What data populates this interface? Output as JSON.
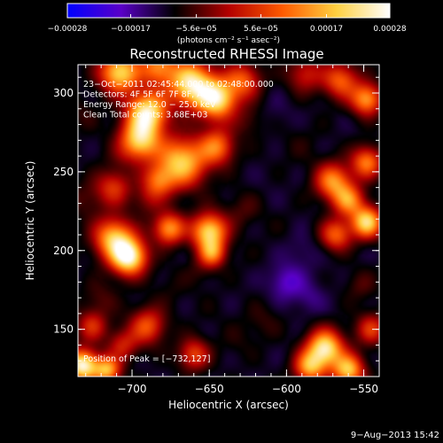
{
  "chart_data": {
    "type": "heatmap",
    "title": "Reconstructed RHESSI Image",
    "xlabel": "Heliocentric X (arcsec)",
    "ylabel": "Heliocentric Y (arcsec)",
    "xlim": [
      -735,
      -540
    ],
    "ylim": [
      120,
      318
    ],
    "x_ticks": [
      -700,
      -650,
      -600,
      -550
    ],
    "x_tick_labels": [
      "−700",
      "−650",
      "−600",
      "−550"
    ],
    "y_ticks": [
      150,
      200,
      250,
      300
    ],
    "y_tick_labels": [
      "150",
      "200",
      "250",
      "300"
    ],
    "colorbar": {
      "range": [
        -0.00028,
        0.00028
      ],
      "ticks": [
        -0.00028,
        -0.00017,
        -5.6e-05,
        5.6e-05,
        0.00017,
        0.00028
      ],
      "tick_labels": [
        "−0.00028",
        "−0.00017",
        "−5.6e−05",
        "5.6e−05",
        "0.00017",
        "0.00028"
      ],
      "units": "(photons cm⁻² s⁻¹ asec⁻²)",
      "colormap": [
        "#0000ff",
        "#5a00c8",
        "#000000",
        "#b30000",
        "#ff5a00",
        "#ffd040",
        "#ffffff"
      ]
    },
    "annotations": [
      "23−Oct−2011 02:45:44.000 to 02:48:00.000",
      "Detectors: 4F 5F 6F 7F 8F, Att 0",
      "Energy Range: 12.0 − 25.0 keV",
      "Clean     Total counts: 3.68E+03"
    ],
    "peak_label": "Position of Peak = [−732,127]",
    "peak_position": [
      -732,
      127
    ],
    "blobs": [
      {
        "x": -708,
        "y": 313,
        "v": 0.8,
        "s": 9
      },
      {
        "x": -683,
        "y": 317,
        "v": 0.45,
        "s": 8
      },
      {
        "x": -662,
        "y": 306,
        "v": 0.9,
        "s": 10
      },
      {
        "x": -645,
        "y": 296,
        "v": 0.85,
        "s": 9
      },
      {
        "x": -628,
        "y": 308,
        "v": 0.3,
        "s": 8
      },
      {
        "x": -588,
        "y": 312,
        "v": 0.1,
        "s": 8
      },
      {
        "x": -565,
        "y": 308,
        "v": 0.35,
        "s": 8
      },
      {
        "x": -548,
        "y": 296,
        "v": 0.55,
        "s": 7
      },
      {
        "x": -690,
        "y": 288,
        "v": 0.9,
        "s": 9
      },
      {
        "x": -695,
        "y": 270,
        "v": 0.75,
        "s": 9
      },
      {
        "x": -720,
        "y": 262,
        "v": -0.35,
        "s": 7
      },
      {
        "x": -732,
        "y": 286,
        "v": -0.25,
        "s": 7
      },
      {
        "x": -712,
        "y": 240,
        "v": 0.2,
        "s": 8
      },
      {
        "x": -706,
        "y": 260,
        "v": -0.3,
        "s": 6
      },
      {
        "x": -668,
        "y": 256,
        "v": 0.75,
        "s": 11
      },
      {
        "x": -683,
        "y": 244,
        "v": 0.25,
        "s": 7
      },
      {
        "x": -645,
        "y": 266,
        "v": 0.4,
        "s": 8
      },
      {
        "x": -624,
        "y": 282,
        "v": -0.2,
        "s": 7
      },
      {
        "x": -605,
        "y": 286,
        "v": -0.45,
        "s": 9
      },
      {
        "x": -593,
        "y": 268,
        "v": -0.3,
        "s": 10
      },
      {
        "x": -570,
        "y": 244,
        "v": 0.5,
        "s": 8
      },
      {
        "x": -548,
        "y": 256,
        "v": 0.45,
        "s": 7
      },
      {
        "x": -560,
        "y": 232,
        "v": 0.45,
        "s": 7
      },
      {
        "x": -548,
        "y": 218,
        "v": 0.8,
        "s": 7
      },
      {
        "x": -568,
        "y": 210,
        "v": 0.35,
        "s": 7
      },
      {
        "x": -730,
        "y": 232,
        "v": -0.2,
        "s": 8
      },
      {
        "x": -712,
        "y": 208,
        "v": 0.65,
        "s": 9
      },
      {
        "x": -702,
        "y": 196,
        "v": 1.0,
        "s": 8
      },
      {
        "x": -676,
        "y": 214,
        "v": 0.55,
        "s": 7
      },
      {
        "x": -650,
        "y": 212,
        "v": 0.8,
        "s": 8
      },
      {
        "x": -648,
        "y": 198,
        "v": 0.35,
        "s": 6
      },
      {
        "x": -628,
        "y": 226,
        "v": -0.2,
        "s": 8
      },
      {
        "x": -612,
        "y": 240,
        "v": -0.4,
        "s": 9
      },
      {
        "x": -605,
        "y": 215,
        "v": -0.35,
        "s": 9
      },
      {
        "x": -590,
        "y": 200,
        "v": -0.5,
        "s": 8
      },
      {
        "x": -600,
        "y": 180,
        "v": -0.7,
        "s": 8
      },
      {
        "x": -585,
        "y": 170,
        "v": -0.55,
        "s": 7
      },
      {
        "x": -578,
        "y": 186,
        "v": -0.4,
        "s": 7
      },
      {
        "x": -676,
        "y": 176,
        "v": -0.3,
        "s": 9
      },
      {
        "x": -655,
        "y": 188,
        "v": -0.25,
        "s": 7
      },
      {
        "x": -720,
        "y": 170,
        "v": -0.2,
        "s": 8
      },
      {
        "x": -690,
        "y": 152,
        "v": 0.3,
        "s": 8
      },
      {
        "x": -650,
        "y": 160,
        "v": -0.35,
        "s": 8
      },
      {
        "x": -632,
        "y": 142,
        "v": -0.3,
        "s": 8
      },
      {
        "x": -706,
        "y": 140,
        "v": 0.1,
        "s": 7
      },
      {
        "x": -726,
        "y": 152,
        "v": 0.15,
        "s": 7
      },
      {
        "x": -732,
        "y": 127,
        "v": 1.0,
        "s": 7
      },
      {
        "x": -716,
        "y": 124,
        "v": 0.6,
        "s": 6
      },
      {
        "x": -660,
        "y": 134,
        "v": 0.25,
        "s": 7
      },
      {
        "x": -615,
        "y": 155,
        "v": -0.25,
        "s": 8
      },
      {
        "x": -575,
        "y": 138,
        "v": 0.9,
        "s": 8
      },
      {
        "x": -560,
        "y": 124,
        "v": 0.7,
        "s": 7
      },
      {
        "x": -585,
        "y": 126,
        "v": 0.55,
        "s": 7
      },
      {
        "x": -545,
        "y": 150,
        "v": 0.2,
        "s": 7
      },
      {
        "x": -552,
        "y": 178,
        "v": -0.2,
        "s": 7
      },
      {
        "x": -630,
        "y": 196,
        "v": -0.35,
        "s": 7
      },
      {
        "x": -690,
        "y": 232,
        "v": -0.1,
        "s": 7
      }
    ]
  },
  "footer": {
    "timestamp": "9−Aug−2013 15:42"
  }
}
